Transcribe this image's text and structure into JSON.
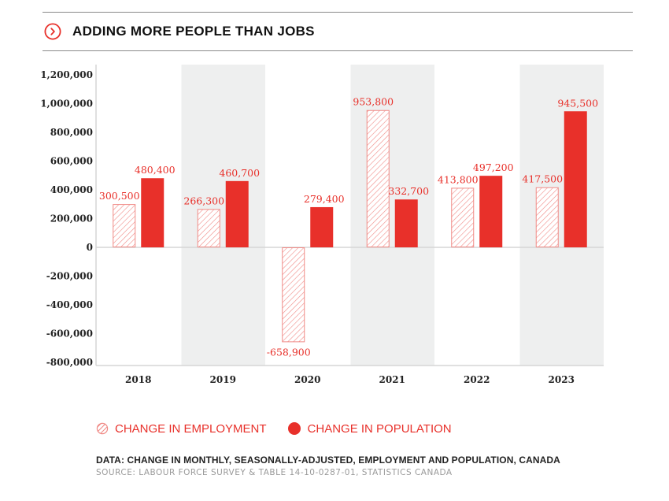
{
  "header": {
    "title": "ADDING MORE PEOPLE THAN JOBS",
    "icon": "chevron-right-circle-icon"
  },
  "colors": {
    "accent": "#e8302a",
    "hatch": "#f08a86",
    "band": "#eeefef",
    "axis": "#d6d6d6"
  },
  "chart_data": {
    "type": "bar",
    "title": "ADDING MORE PEOPLE THAN JOBS",
    "xlabel": "",
    "ylabel": "",
    "categories": [
      "2018",
      "2019",
      "2020",
      "2021",
      "2022",
      "2023"
    ],
    "series": [
      {
        "name": "CHANGE IN EMPLOYMENT",
        "style": "hatched",
        "values": [
          300500,
          266300,
          -658900,
          953800,
          413800,
          417500
        ],
        "labels": [
          "300,500",
          "266,300",
          "-658,900",
          "953,800",
          "413,800",
          "417,500"
        ]
      },
      {
        "name": "CHANGE IN POPULATION",
        "style": "solid",
        "values": [
          480400,
          460700,
          279400,
          332700,
          497200,
          945500
        ],
        "labels": [
          "480,400",
          "460,700",
          "279,400",
          "332,700",
          "497,200",
          "945,500"
        ]
      }
    ],
    "ylim": [
      -800000,
      1200000
    ],
    "yticks": [
      1200000,
      1000000,
      800000,
      600000,
      400000,
      200000,
      0,
      -200000,
      -400000,
      -600000,
      -800000
    ],
    "ytick_labels": [
      "1,200,000",
      "1,000,000",
      "800,000",
      "600,000",
      "400,000",
      "200,000",
      "0",
      "-200,000",
      "-400,000",
      "-600,000",
      "-800,000"
    ],
    "alternating_band_categories": [
      "2019",
      "2021",
      "2023"
    ],
    "grid": false,
    "legend": "bottom-left"
  },
  "legend": {
    "employment_label": "CHANGE IN EMPLOYMENT",
    "population_label": "CHANGE IN POPULATION"
  },
  "footer": {
    "data_note": "DATA: CHANGE IN MONTHLY, SEASONALLY-ADJUSTED, EMPLOYMENT AND POPULATION, CANADA",
    "source": "SOURCE: LABOUR FORCE SURVEY & TABLE 14-10-0287-01, STATISTICS CANADA"
  }
}
